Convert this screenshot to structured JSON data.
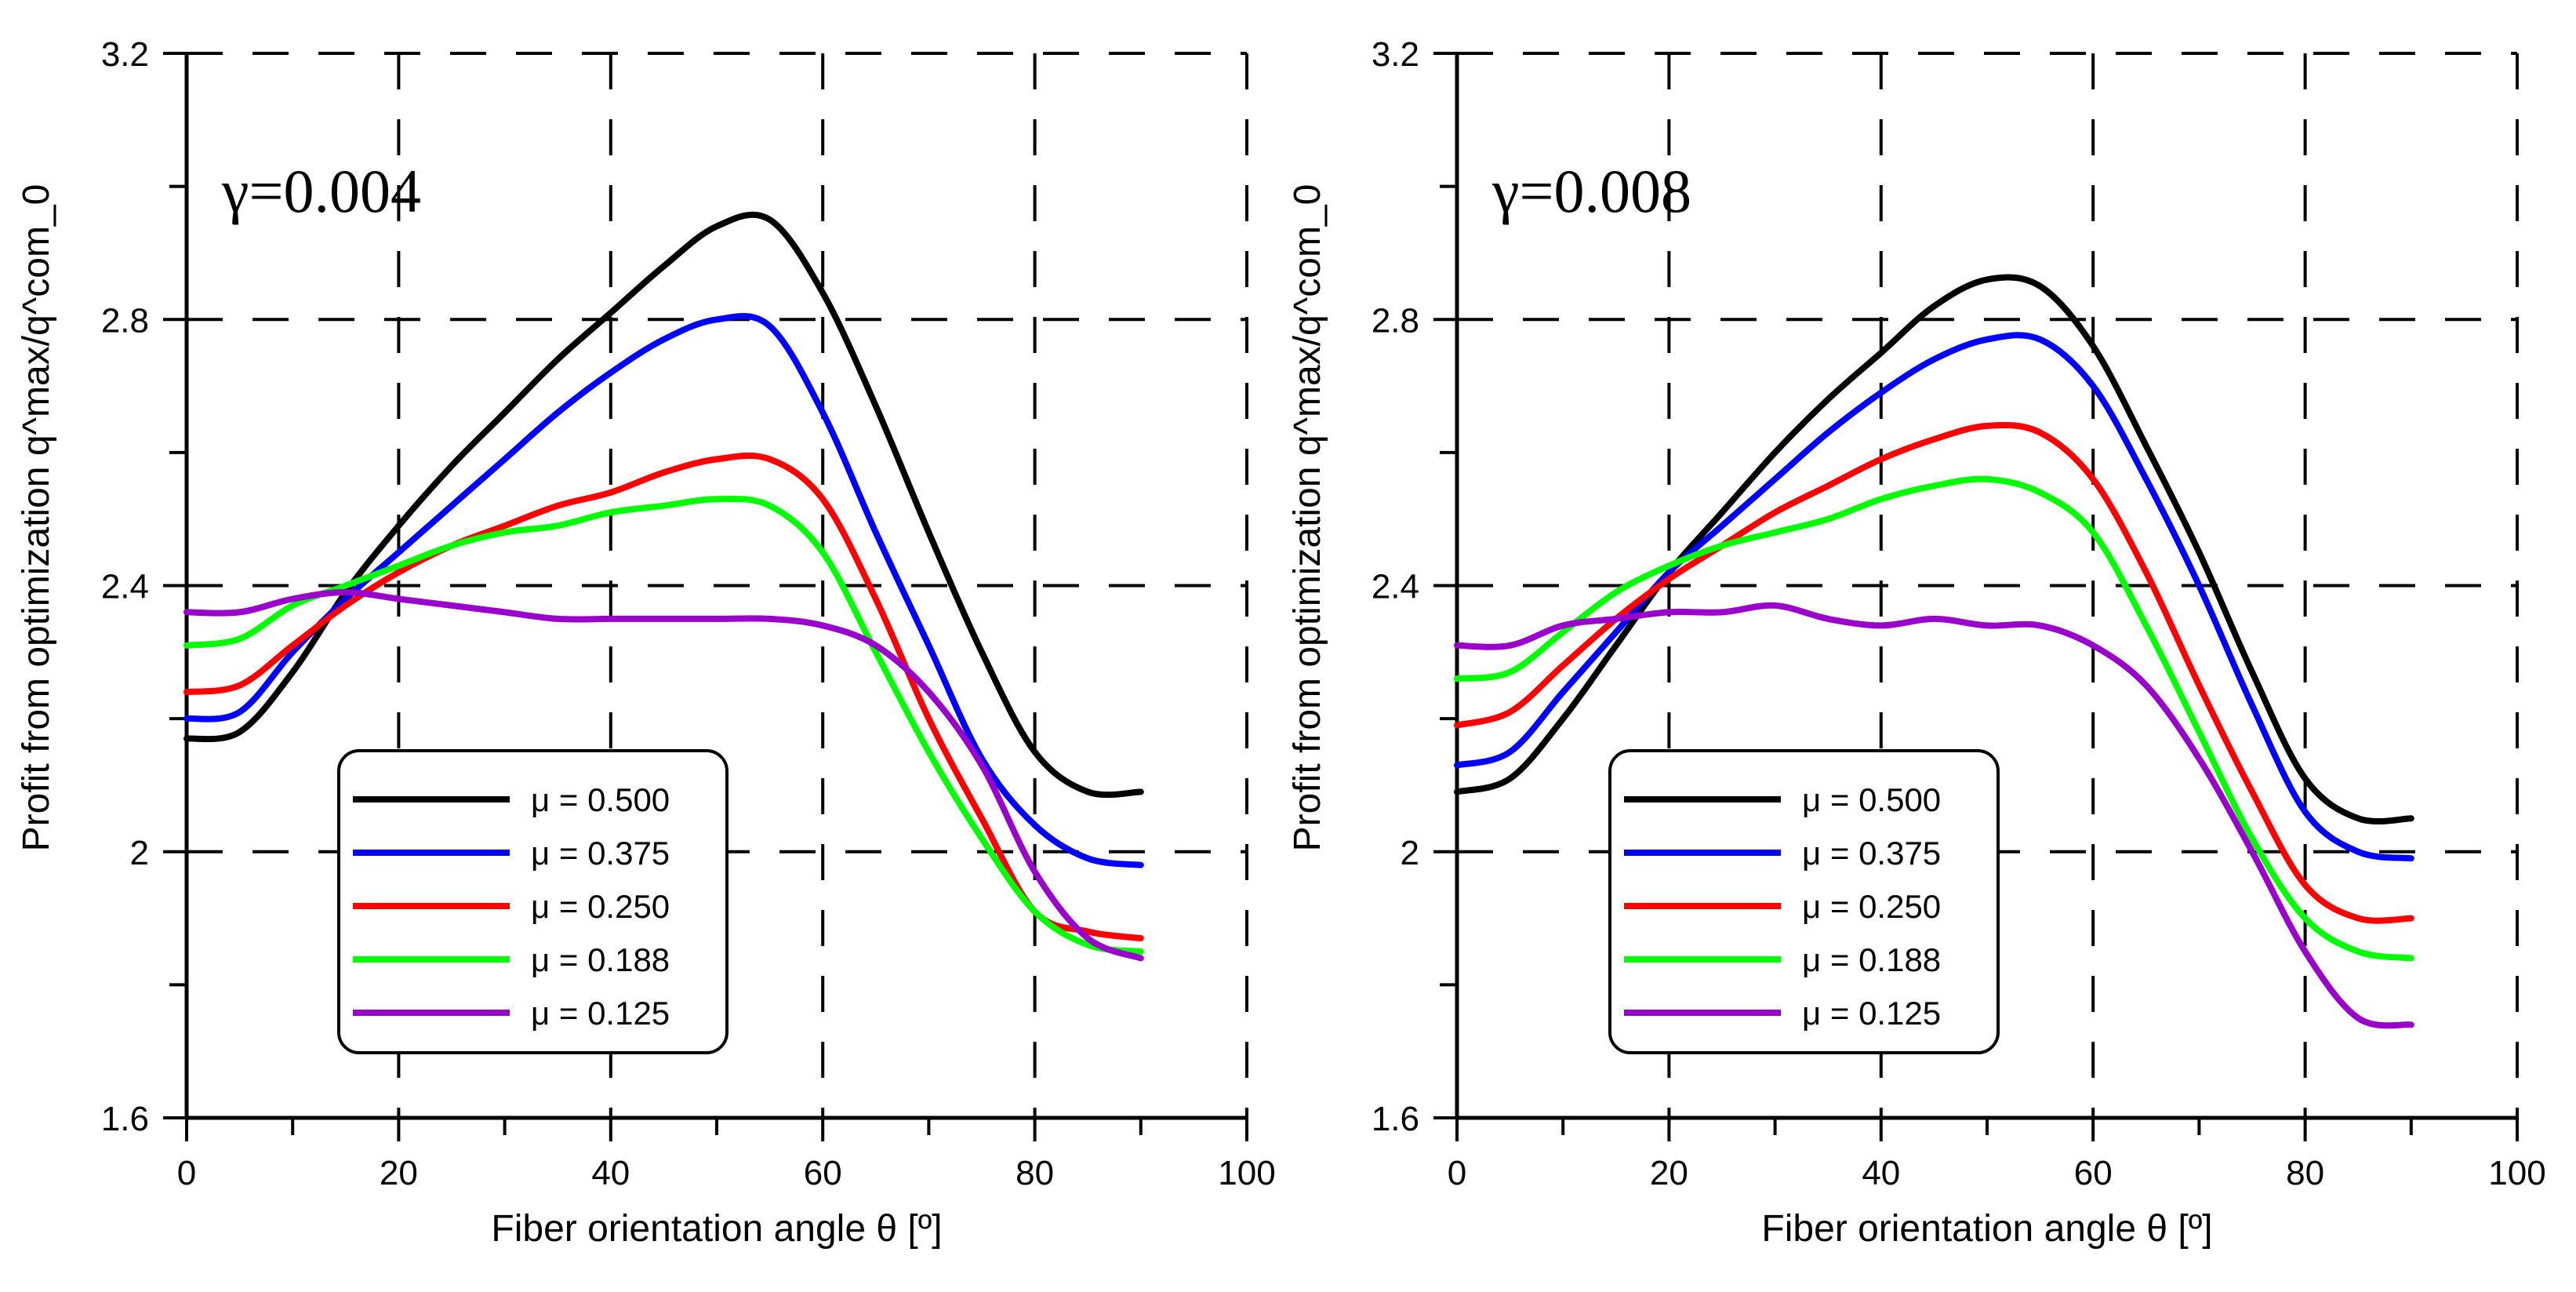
{
  "chart_data": [
    {
      "type": "line",
      "annotation": "γ=0.004",
      "xlabel": "Fiber orientation angle θ [º]",
      "ylabel": "Profit from optimization q^max/q^com_0",
      "xlim": [
        0,
        100
      ],
      "ylim": [
        1.6,
        3.2
      ],
      "xticks": [
        0,
        20,
        40,
        60,
        80,
        100
      ],
      "yticks": [
        1.6,
        2,
        2.4,
        2.8,
        3.2
      ],
      "ytick_labels": [
        "1.6",
        "2",
        "2.4",
        "2.8",
        "3.2"
      ],
      "grid": "dashed",
      "legend_position": "lower-left",
      "x": [
        0,
        5,
        10,
        15,
        20,
        25,
        30,
        35,
        40,
        45,
        50,
        55,
        60,
        65,
        70,
        75,
        80,
        85,
        90
      ],
      "series": [
        {
          "name": "μ = 0.500",
          "color": "#000000",
          "values": [
            2.17,
            2.18,
            2.27,
            2.39,
            2.49,
            2.58,
            2.66,
            2.74,
            2.81,
            2.88,
            2.94,
            2.95,
            2.84,
            2.67,
            2.48,
            2.3,
            2.15,
            2.09,
            2.09
          ]
        },
        {
          "name": "μ = 0.375",
          "color": "#0000ff",
          "values": [
            2.2,
            2.21,
            2.3,
            2.38,
            2.45,
            2.52,
            2.59,
            2.66,
            2.72,
            2.77,
            2.8,
            2.79,
            2.66,
            2.48,
            2.31,
            2.14,
            2.04,
            1.99,
            1.98
          ]
        },
        {
          "name": "μ = 0.250",
          "color": "#ff0000",
          "values": [
            2.24,
            2.25,
            2.31,
            2.37,
            2.42,
            2.46,
            2.49,
            2.52,
            2.54,
            2.57,
            2.59,
            2.59,
            2.53,
            2.38,
            2.2,
            2.05,
            1.91,
            1.88,
            1.87
          ]
        },
        {
          "name": "μ = 0.188",
          "color": "#00ff00",
          "values": [
            2.31,
            2.32,
            2.37,
            2.4,
            2.43,
            2.46,
            2.48,
            2.49,
            2.51,
            2.52,
            2.53,
            2.52,
            2.45,
            2.3,
            2.15,
            2.02,
            1.91,
            1.86,
            1.85
          ]
        },
        {
          "name": "μ = 0.125",
          "color": "#9900cc",
          "values": [
            2.36,
            2.36,
            2.38,
            2.39,
            2.38,
            2.37,
            2.36,
            2.35,
            2.35,
            2.35,
            2.35,
            2.35,
            2.34,
            2.31,
            2.24,
            2.13,
            1.97,
            1.87,
            1.84
          ]
        }
      ]
    },
    {
      "type": "line",
      "annotation": "γ=0.008",
      "xlabel": "Fiber orientation angle θ [º]",
      "ylabel": "Profit from optimization q^max/q^com_0",
      "xlim": [
        0,
        100
      ],
      "ylim": [
        1.6,
        3.2
      ],
      "xticks": [
        0,
        20,
        40,
        60,
        80,
        100
      ],
      "yticks": [
        1.6,
        2,
        2.4,
        2.8,
        3.2
      ],
      "ytick_labels": [
        "1.6",
        "2",
        "2.4",
        "2.8",
        "3.2"
      ],
      "grid": "dashed",
      "legend_position": "lower-left",
      "x": [
        0,
        5,
        10,
        15,
        20,
        25,
        30,
        35,
        40,
        45,
        50,
        55,
        60,
        65,
        70,
        75,
        80,
        85,
        90
      ],
      "series": [
        {
          "name": "μ = 0.500",
          "color": "#000000",
          "values": [
            2.09,
            2.11,
            2.2,
            2.31,
            2.42,
            2.51,
            2.6,
            2.68,
            2.75,
            2.82,
            2.86,
            2.85,
            2.76,
            2.61,
            2.45,
            2.27,
            2.11,
            2.05,
            2.05
          ]
        },
        {
          "name": "μ = 0.375",
          "color": "#0000ff",
          "values": [
            2.13,
            2.15,
            2.24,
            2.33,
            2.42,
            2.49,
            2.56,
            2.63,
            2.69,
            2.74,
            2.77,
            2.77,
            2.7,
            2.56,
            2.4,
            2.22,
            2.06,
            2.0,
            1.99
          ]
        },
        {
          "name": "μ = 0.250",
          "color": "#ff0000",
          "values": [
            2.19,
            2.21,
            2.28,
            2.35,
            2.41,
            2.46,
            2.51,
            2.55,
            2.59,
            2.62,
            2.64,
            2.63,
            2.56,
            2.42,
            2.25,
            2.09,
            1.95,
            1.9,
            1.9
          ]
        },
        {
          "name": "μ = 0.188",
          "color": "#00ff00",
          "values": [
            2.26,
            2.27,
            2.33,
            2.39,
            2.43,
            2.46,
            2.48,
            2.5,
            2.53,
            2.55,
            2.56,
            2.54,
            2.48,
            2.34,
            2.18,
            2.02,
            1.9,
            1.85,
            1.84
          ]
        },
        {
          "name": "μ = 0.125",
          "color": "#9900cc",
          "values": [
            2.31,
            2.31,
            2.34,
            2.35,
            2.36,
            2.36,
            2.37,
            2.35,
            2.34,
            2.35,
            2.34,
            2.34,
            2.31,
            2.25,
            2.14,
            2.0,
            1.85,
            1.75,
            1.74
          ]
        }
      ]
    }
  ]
}
